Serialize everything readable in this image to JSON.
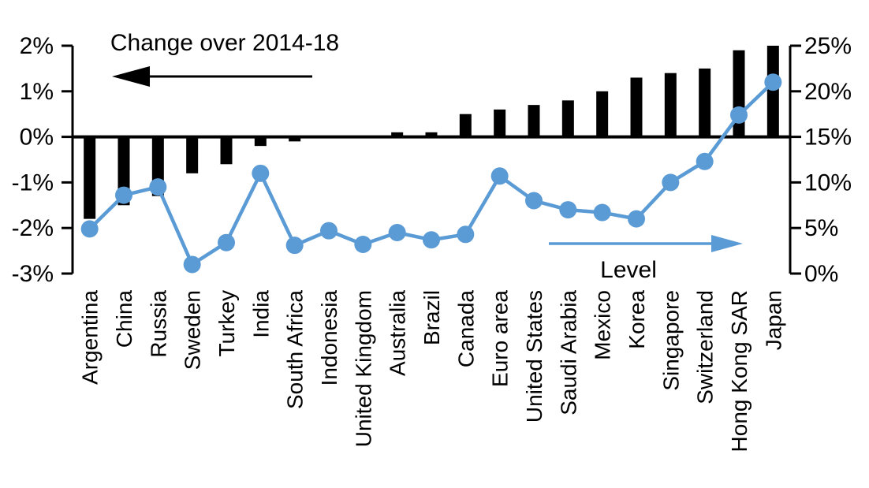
{
  "chart_data": {
    "type": "bar-line-combo",
    "title": "Change over 2014-18",
    "categories": [
      "Argentina",
      "China",
      "Russia",
      "Sweden",
      "Turkey",
      "India",
      "South Africa",
      "Indonesia",
      "United Kingdom",
      "Australia",
      "Brazil",
      "Canada",
      "Euro area",
      "United States",
      "Saudi Arabia",
      "Mexico",
      "Korea",
      "Singapore",
      "Switzerland",
      "Hong Kong SAR",
      "Japan"
    ],
    "series": [
      {
        "name": "Change over 2014-18",
        "type": "bar",
        "axis": "left",
        "color": "#000000",
        "values": [
          -1.8,
          -1.5,
          -1.3,
          -0.8,
          -0.6,
          -0.2,
          -0.1,
          0,
          0,
          0.1,
          0.1,
          0.5,
          0.6,
          0.7,
          0.8,
          1.0,
          1.3,
          1.4,
          1.5,
          1.9,
          2.0
        ]
      },
      {
        "name": "Level",
        "type": "line",
        "axis": "right",
        "color": "#5B9BD5",
        "values": [
          4.9,
          8.6,
          9.5,
          1.0,
          3.4,
          11.0,
          3.1,
          4.7,
          3.2,
          4.5,
          3.7,
          4.3,
          10.7,
          8.0,
          7.0,
          6.7,
          6.0,
          10.0,
          12.3,
          17.4,
          21.0
        ]
      }
    ],
    "left_axis": {
      "min": -3,
      "max": 2,
      "tick_values": [
        2,
        1,
        0,
        -1,
        -2,
        -3
      ],
      "tick_labels": [
        "2%",
        "1%",
        "0%",
        "-1%",
        "-2%",
        "-3%"
      ]
    },
    "right_axis": {
      "min": 0,
      "max": 25,
      "tick_values": [
        25,
        20,
        15,
        10,
        5,
        0
      ],
      "tick_labels": [
        "25%",
        "20%",
        "15%",
        "10%",
        "5%",
        "0%"
      ]
    },
    "grid": false,
    "legend_position": "in-plot arrow annotations",
    "annotations": {
      "bar_arrow_direction": "left",
      "line_arrow_direction": "right"
    }
  }
}
